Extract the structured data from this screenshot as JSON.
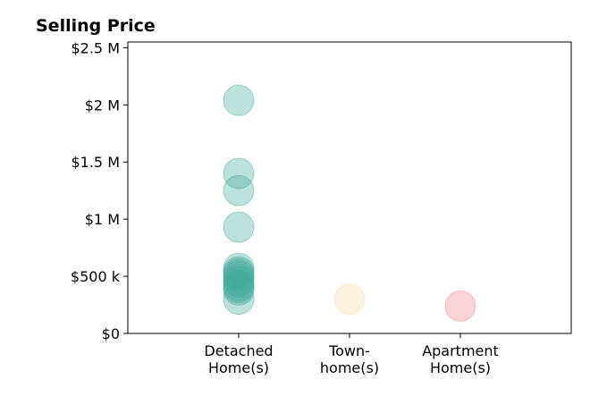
{
  "chart_data": {
    "type": "scatter",
    "title": "Selling Price",
    "xlabel": "",
    "ylabel": "",
    "categories": [
      [
        "Detached",
        "Home(s)"
      ],
      [
        "Town-",
        "home(s)"
      ],
      [
        "Apartment",
        "Home(s)"
      ]
    ],
    "y_ticks": [
      {
        "value": 0,
        "label": "$0"
      },
      {
        "value": 500000,
        "label": "$500 k"
      },
      {
        "value": 1000000,
        "label": "$1 M"
      },
      {
        "value": 1500000,
        "label": "$1.5 M"
      },
      {
        "value": 2000000,
        "label": "$2 M"
      },
      {
        "value": 2500000,
        "label": "$2.5 M"
      }
    ],
    "ylim": [
      0,
      2550000
    ],
    "x_range": [
      0,
      4
    ],
    "grid": false,
    "series": [
      {
        "category": 0,
        "color": "#41a99a",
        "values": [
          2040000,
          1400000,
          1250000,
          930000,
          570000,
          540000,
          520000,
          500000,
          470000,
          450000,
          420000,
          400000,
          380000,
          300000
        ]
      },
      {
        "category": 1,
        "color": "#f3dca3",
        "values": [
          300000
        ]
      },
      {
        "category": 2,
        "color": "#ee8288",
        "values": [
          240000
        ]
      }
    ]
  }
}
